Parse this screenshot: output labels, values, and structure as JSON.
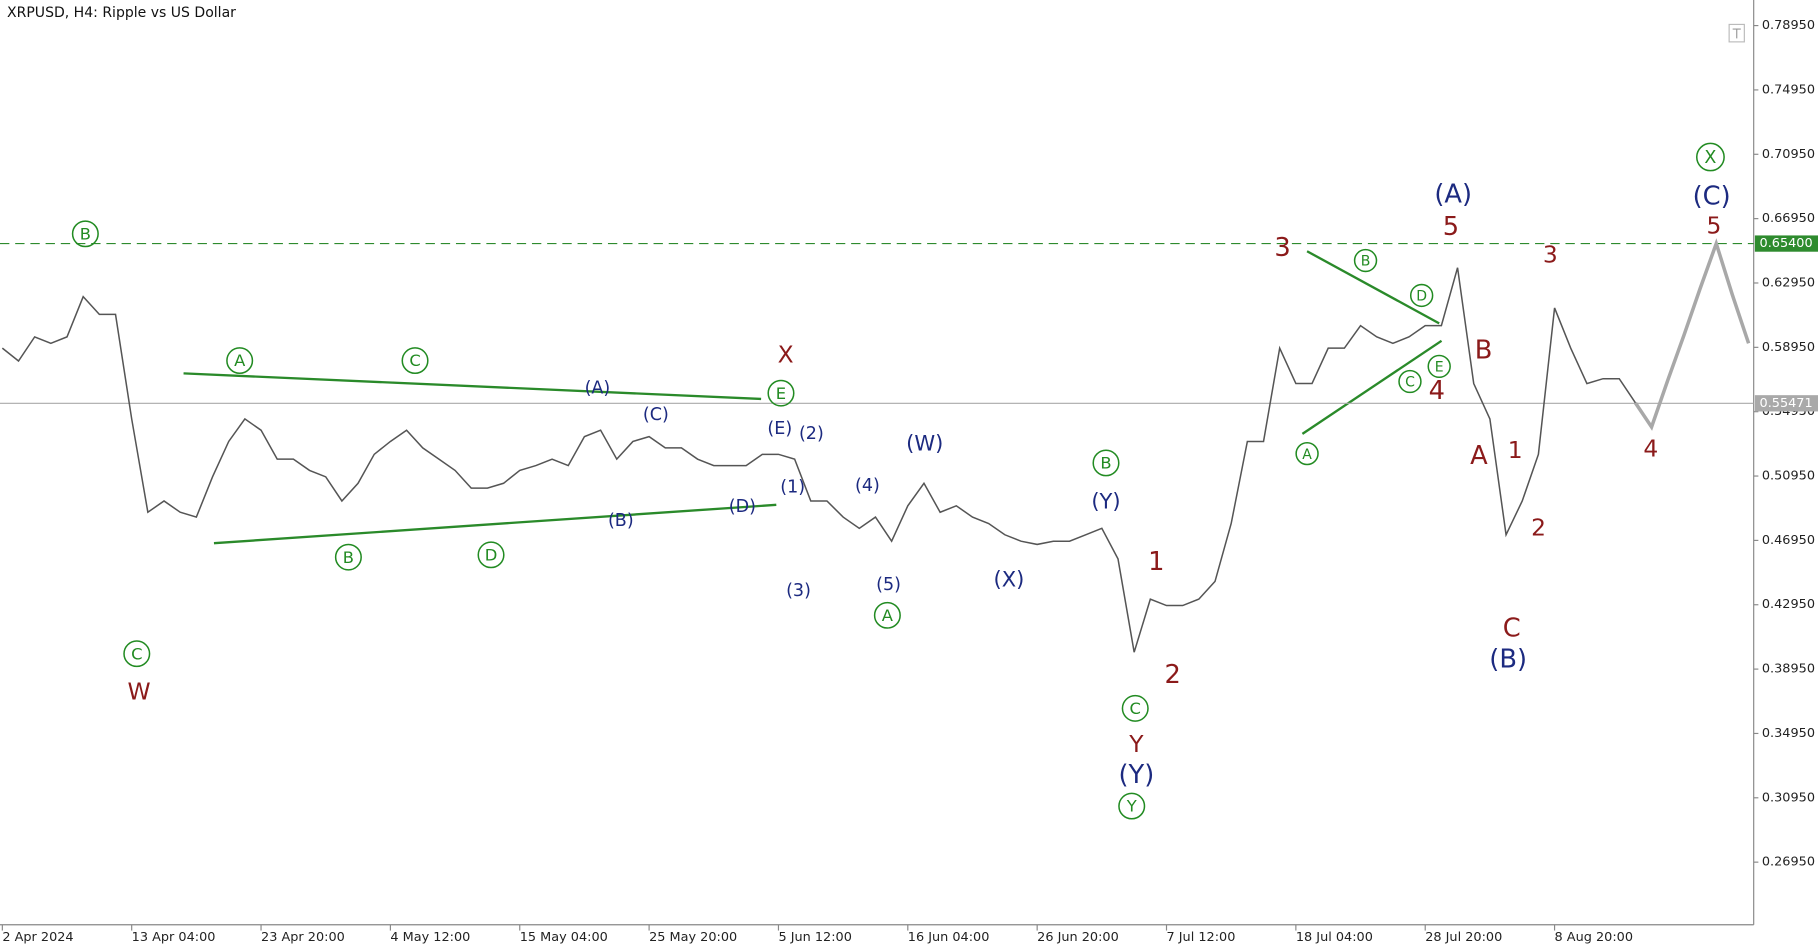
{
  "chart_data": {
    "type": "line",
    "title": "XRPUSD, H4:  Ripple vs US Dollar",
    "categories": [
      "2 Apr 2024",
      null,
      null,
      null,
      null,
      null,
      null,
      null,
      "13 Apr 04:00",
      null,
      null,
      null,
      null,
      null,
      null,
      null,
      "23 Apr 20:00",
      null,
      null,
      null,
      null,
      null,
      null,
      null,
      "4 May 12:00",
      null,
      null,
      null,
      null,
      null,
      null,
      null,
      "15 May 04:00",
      null,
      null,
      null,
      null,
      null,
      null,
      null,
      "25 May 20:00",
      null,
      null,
      null,
      null,
      null,
      null,
      null,
      "5 Jun 12:00",
      null,
      null,
      null,
      null,
      null,
      null,
      null,
      "16 Jun 04:00",
      null,
      null,
      null,
      null,
      null,
      null,
      null,
      "26 Jun 20:00",
      null,
      null,
      null,
      null,
      null,
      null,
      null,
      "7 Jul 12:00",
      null,
      null,
      null,
      null,
      null,
      null,
      null,
      "18 Jul 04:00",
      null,
      null,
      null,
      null,
      null,
      null,
      null,
      "28 Jul 20:00",
      null,
      null,
      null,
      null,
      null,
      null,
      null,
      "8 Aug 20:00",
      null,
      null,
      null,
      null,
      null,
      null,
      null,
      null,
      null,
      null,
      null,
      null
    ],
    "series": [
      {
        "color": "#555555",
        "values": [
          0.589,
          0.581,
          0.596,
          0.592,
          0.596,
          0.621,
          0.61,
          0.61,
          0.545,
          0.487,
          0.494,
          0.487,
          0.484,
          0.509,
          0.531,
          0.545,
          0.538,
          0.52,
          0.52,
          0.513,
          0.509,
          0.494,
          0.505,
          0.523,
          0.531,
          0.538,
          0.527,
          0.52,
          0.513,
          0.502,
          0.502,
          0.505,
          0.513,
          0.516,
          0.52,
          0.516,
          0.534,
          0.538,
          0.52,
          0.531,
          0.534,
          0.527,
          0.527,
          0.52,
          0.516,
          0.516,
          0.516,
          0.523,
          0.523,
          0.52,
          0.494,
          0.494,
          0.484,
          0.477,
          0.484,
          0.469,
          0.491,
          0.505,
          0.487,
          0.491,
          0.484,
          0.48,
          0.473,
          0.469,
          0.467,
          0.469,
          0.469,
          0.473,
          0.477,
          0.458,
          0.4,
          0.433,
          0.429,
          0.429,
          0.433,
          0.444,
          0.48,
          0.531,
          0.531,
          0.589,
          0.567,
          0.567,
          0.589,
          0.589,
          0.603,
          0.596,
          0.592,
          0.596,
          0.603,
          0.603,
          0.639,
          0.567,
          0.545,
          0.473,
          0.494,
          0.523,
          0.614,
          0.589,
          0.567,
          0.57,
          0.57,
          0.555,
          null,
          null,
          null,
          null,
          null,
          null,
          null
        ]
      },
      {
        "color": "#a8a8a8",
        "values": [
          null,
          null,
          null,
          null,
          null,
          null,
          null,
          null,
          null,
          null,
          null,
          null,
          null,
          null,
          null,
          null,
          null,
          null,
          null,
          null,
          null,
          null,
          null,
          null,
          null,
          null,
          null,
          null,
          null,
          null,
          null,
          null,
          null,
          null,
          null,
          null,
          null,
          null,
          null,
          null,
          null,
          null,
          null,
          null,
          null,
          null,
          null,
          null,
          null,
          null,
          null,
          null,
          null,
          null,
          null,
          null,
          null,
          null,
          null,
          null,
          null,
          null,
          null,
          null,
          null,
          null,
          null,
          null,
          null,
          null,
          null,
          null,
          null,
          null,
          null,
          null,
          null,
          null,
          null,
          null,
          null,
          null,
          null,
          null,
          null,
          null,
          null,
          null,
          null,
          null,
          null,
          null,
          null,
          null,
          null,
          null,
          null,
          null,
          null,
          null,
          null,
          0.555,
          0.54,
          0.569,
          0.597,
          0.626,
          0.654,
          0.622,
          0.592
        ]
      }
    ],
    "ylim": [
      0.2306,
      0.8054
    ],
    "yticks": [
      {
        "value": 0.7895,
        "label": "0.78950"
      },
      {
        "value": 0.7495,
        "label": "0.74950"
      },
      {
        "value": 0.7095,
        "label": "0.70950"
      },
      {
        "value": 0.6695,
        "label": "0.66950"
      },
      {
        "value": 0.6295,
        "label": "0.62950"
      },
      {
        "value": 0.5895,
        "label": "0.58950"
      },
      {
        "value": 0.5495,
        "label": "0.54950"
      },
      {
        "value": 0.5095,
        "label": "0.50950"
      },
      {
        "value": 0.4695,
        "label": "0.46950"
      },
      {
        "value": 0.4295,
        "label": "0.42950"
      },
      {
        "value": 0.3895,
        "label": "0.38950"
      },
      {
        "value": 0.3495,
        "label": "0.34950"
      },
      {
        "value": 0.3095,
        "label": "0.30950"
      },
      {
        "value": 0.2695,
        "label": "0.26950"
      }
    ],
    "price_lines": [
      {
        "value": 0.654,
        "label": "0.65400",
        "color": "#2e8b2e",
        "style": "dashed"
      },
      {
        "value": 0.55471,
        "label": "0.55471",
        "color": "#a9a9a9",
        "style": "solid"
      }
    ],
    "trendline_color": "#2a8a2a",
    "annotations": [
      {
        "text": "B",
        "color": "#228b22",
        "circled": true
      },
      {
        "text": "A",
        "color": "#228b22",
        "circled": true
      },
      {
        "text": "C",
        "color": "#228b22",
        "circled": true
      },
      {
        "text": "E",
        "color": "#228b22",
        "circled": true
      },
      {
        "text": "C",
        "color": "#228b22",
        "circled": true
      },
      {
        "text": "B",
        "color": "#228b22",
        "circled": true
      },
      {
        "text": "D",
        "color": "#228b22",
        "circled": true
      },
      {
        "text": "A",
        "color": "#228b22",
        "circled": true
      },
      {
        "text": "B",
        "color": "#228b22",
        "circled": true
      },
      {
        "text": "C",
        "color": "#228b22",
        "circled": true
      },
      {
        "text": "Y",
        "color": "#228b22",
        "circled": true
      },
      {
        "text": "B",
        "color": "#228b22",
        "circled": true
      },
      {
        "text": "D",
        "color": "#228b22",
        "circled": true
      },
      {
        "text": "E",
        "color": "#228b22",
        "circled": true
      },
      {
        "text": "C",
        "color": "#228b22",
        "circled": true
      },
      {
        "text": "A",
        "color": "#228b22",
        "circled": true
      },
      {
        "text": "X",
        "color": "#228b22",
        "circled": true
      },
      {
        "text": "(A)",
        "color": "#1c2a80",
        "circled": false
      },
      {
        "text": "(C)",
        "color": "#1c2a80",
        "circled": false
      },
      {
        "text": "(B)",
        "color": "#1c2a80",
        "circled": false
      },
      {
        "text": "(D)",
        "color": "#1c2a80",
        "circled": false
      },
      {
        "text": "(E)",
        "color": "#1c2a80",
        "circled": false
      },
      {
        "text": "(2)",
        "color": "#1c2a80",
        "circled": false
      },
      {
        "text": "(1)",
        "color": "#1c2a80",
        "circled": false
      },
      {
        "text": "(3)",
        "color": "#1c2a80",
        "circled": false
      },
      {
        "text": "(4)",
        "color": "#1c2a80",
        "circled": false
      },
      {
        "text": "(5)",
        "color": "#1c2a80",
        "circled": false
      },
      {
        "text": "(W)",
        "color": "#1c2a80",
        "circled": false
      },
      {
        "text": "(X)",
        "color": "#1c2a80",
        "circled": false
      },
      {
        "text": "(Y)",
        "color": "#1c2a80",
        "circled": false
      },
      {
        "text": "(Y)",
        "color": "#1c2a80",
        "circled": false
      },
      {
        "text": "(A)",
        "color": "#1c2a80",
        "circled": false
      },
      {
        "text": "(B)",
        "color": "#1c2a80",
        "circled": false
      },
      {
        "text": "(C)",
        "color": "#1c2a80",
        "circled": false
      },
      {
        "text": "W",
        "color": "#8b1a1a",
        "circled": false
      },
      {
        "text": "X",
        "color": "#8b1a1a",
        "circled": false
      },
      {
        "text": "Y",
        "color": "#8b1a1a",
        "circled": false
      },
      {
        "text": "1",
        "color": "#8b1a1a",
        "circled": false
      },
      {
        "text": "2",
        "color": "#8b1a1a",
        "circled": false
      },
      {
        "text": "3",
        "color": "#8b1a1a",
        "circled": false
      },
      {
        "text": "4",
        "color": "#8b1a1a",
        "circled": false
      },
      {
        "text": "5",
        "color": "#8b1a1a",
        "circled": false
      },
      {
        "text": "B",
        "color": "#8b1a1a",
        "circled": false
      },
      {
        "text": "A",
        "color": "#8b1a1a",
        "circled": false
      },
      {
        "text": "1",
        "color": "#8b1a1a",
        "circled": false
      },
      {
        "text": "C",
        "color": "#8b1a1a",
        "circled": false
      },
      {
        "text": "2",
        "color": "#8b1a1a",
        "circled": false
      },
      {
        "text": "3",
        "color": "#8b1a1a",
        "circled": false
      },
      {
        "text": "4",
        "color": "#8b1a1a",
        "circled": false
      },
      {
        "text": "5",
        "color": "#8b1a1a",
        "circled": false
      }
    ]
  }
}
